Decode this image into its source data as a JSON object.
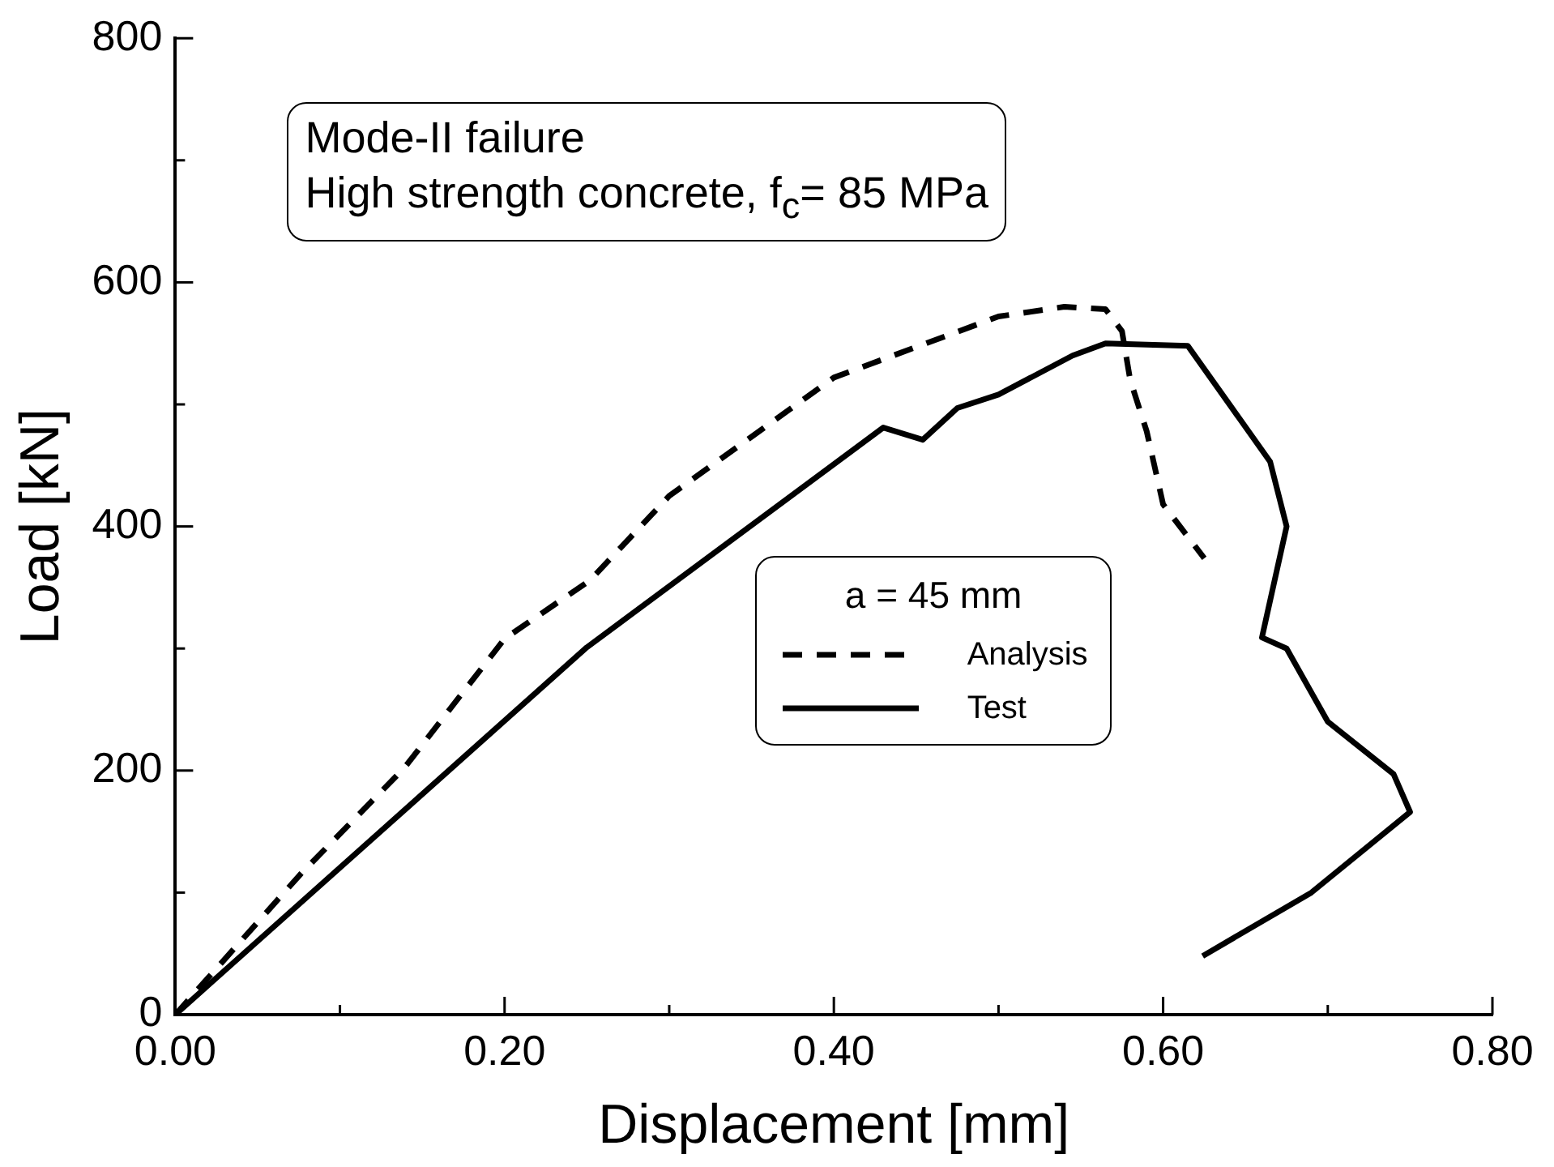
{
  "chart_data": {
    "type": "line",
    "xlabel": "Displacement [mm]",
    "ylabel": "Load [kN]",
    "annotations": [
      "Mode-II failure",
      "High strength concrete, f$_{c}$= 85 MPa"
    ],
    "legend_title": "a = 45 mm",
    "legend": "bottom right",
    "marker": "none",
    "xlim": [
      0,
      0.8
    ],
    "ylim": [
      0,
      800
    ],
    "xticks": [
      {
        "value": 0,
        "label": "0.00"
      },
      {
        "value": 0.1,
        "label": null
      },
      {
        "value": 0.2,
        "label": "0.20"
      },
      {
        "value": 0.3,
        "label": null
      },
      {
        "value": 0.4,
        "label": "0.40"
      },
      {
        "value": 0.5,
        "label": null
      },
      {
        "value": 0.6,
        "label": "0.60"
      },
      {
        "value": 0.7,
        "label": null
      },
      {
        "value": 0.8,
        "label": "0.80"
      }
    ],
    "yticks": [
      0,
      {
        "value": 100,
        "label": null
      },
      200,
      {
        "value": 300,
        "label": null
      },
      400,
      {
        "value": 500,
        "label": null
      },
      600,
      {
        "value": 700,
        "label": null
      },
      800
    ],
    "series": [
      {
        "name": "Analysis",
        "color": "#000000",
        "line_style": "dashed",
        "x": [
          0,
          0.076,
          0.139,
          0.2,
          0.252,
          0.3,
          0.4,
          0.5,
          0.54,
          0.565,
          0.575,
          0.58,
          0.59,
          0.6,
          0.625
        ],
        "values": [
          0,
          115,
          202,
          308,
          356,
          425,
          522,
          572,
          580,
          578,
          560,
          520,
          478,
          418,
          374
        ]
      },
      {
        "name": "Test",
        "color": "#000000",
        "line_style": "solid",
        "x": [
          0,
          0.25,
          0.43,
          0.454,
          0.475,
          0.5,
          0.545,
          0.565,
          0.615,
          0.665,
          0.675,
          0.66,
          0.675,
          0.7,
          0.74,
          0.75,
          0.69,
          0.624
        ],
        "values": [
          0,
          301,
          481,
          471,
          497,
          508,
          540,
          550,
          548,
          453,
          400,
          309,
          300,
          240,
          197,
          166,
          100,
          48
        ]
      }
    ]
  }
}
